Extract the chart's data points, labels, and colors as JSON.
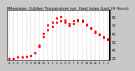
{
  "title": "Milwaukee  Outdoor Temperature (vs)  Heat Index (Last 24 Hours)",
  "background_color": "#c8c8c8",
  "plot_bg_color": "#ffffff",
  "line_color": "#ff0000",
  "marker": "s",
  "marker_size": 1.2,
  "grid_color": "#999999",
  "grid_style": "--",
  "x_labels": [
    "4",
    "5",
    "6",
    "7",
    "8",
    "9",
    "10",
    "11",
    "12",
    "1",
    "2",
    "3",
    "4",
    "5",
    "6",
    "7",
    "8",
    "9",
    "10",
    "11",
    "12",
    "1",
    "2",
    "3"
  ],
  "ylim": [
    28,
    88
  ],
  "yticks": [
    30,
    40,
    50,
    60,
    70,
    80
  ],
  "ylabel_fontsize": 3.5,
  "xlabel_fontsize": 3.0,
  "title_fontsize": 3.8,
  "temperature_data": [
    30,
    30,
    31,
    31,
    32,
    33,
    36,
    44,
    56,
    64,
    68,
    73,
    75,
    73,
    69,
    72,
    75,
    74,
    70,
    66,
    61,
    58,
    55,
    52
  ],
  "heat_index_data": [
    30,
    30,
    31,
    31,
    32,
    33,
    36,
    46,
    60,
    70,
    73,
    78,
    80,
    76,
    72,
    75,
    77,
    76,
    71,
    67,
    62,
    59,
    56,
    53
  ]
}
